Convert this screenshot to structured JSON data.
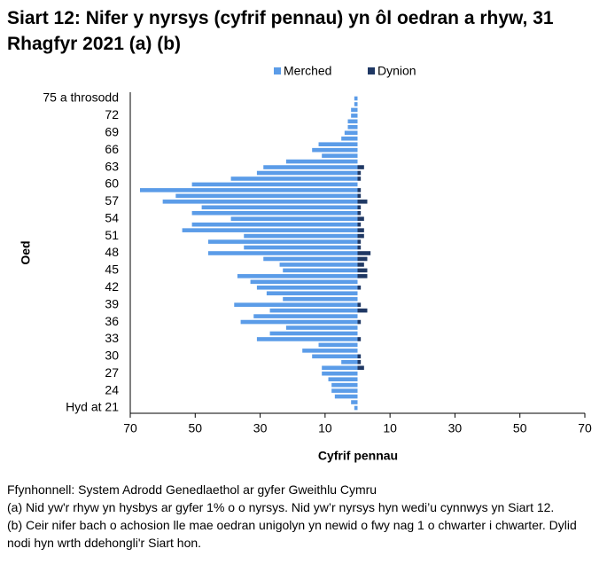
{
  "chart_data": {
    "type": "pyramid",
    "title": "Siart 12: Nifer y nyrsys (cyfrif pennau) yn ôl oedran a rhyw, 31 Rhagfyr 2021 (a) (b)",
    "x_label": "Cyfrif pennau",
    "y_label": "Oed",
    "categories": [
      "Hyd at 21",
      null,
      null,
      "24",
      null,
      null,
      "27",
      null,
      null,
      "30",
      null,
      null,
      "33",
      null,
      null,
      "36",
      null,
      null,
      "39",
      null,
      null,
      "42",
      null,
      null,
      "45",
      null,
      null,
      "48",
      null,
      null,
      "51",
      null,
      null,
      "54",
      null,
      null,
      "57",
      null,
      null,
      "60",
      null,
      null,
      "63",
      null,
      null,
      "66",
      null,
      null,
      "69",
      null,
      null,
      "72",
      null,
      null,
      "75 a throsodd"
    ],
    "series": [
      {
        "name": "Merched",
        "color": "#5b9ce8",
        "side": "left",
        "values": [
          1,
          2,
          7,
          8,
          8,
          9,
          11,
          11,
          5,
          14,
          17,
          12,
          31,
          27,
          22,
          36,
          32,
          27,
          38,
          23,
          28,
          31,
          33,
          37,
          23,
          24,
          29,
          46,
          35,
          46,
          35,
          54,
          51,
          39,
          51,
          48,
          60,
          56,
          67,
          51,
          39,
          31,
          29,
          22,
          11,
          14,
          12,
          5,
          4,
          3,
          3,
          2,
          2,
          1,
          1
        ]
      },
      {
        "name": "Dynion",
        "color": "#1f3864",
        "side": "right",
        "values": [
          0,
          0,
          0,
          0,
          0,
          0,
          0,
          2,
          1,
          1,
          0,
          0,
          1,
          0,
          0,
          1,
          0,
          3,
          1,
          0,
          0,
          1,
          0,
          3,
          3,
          2,
          3,
          4,
          1,
          1,
          2,
          2,
          1,
          2,
          1,
          1,
          3,
          1,
          1,
          0,
          1,
          1,
          2,
          0,
          0,
          0,
          0,
          0,
          0,
          0,
          0,
          0,
          0,
          0,
          0
        ]
      }
    ],
    "xlim": [
      -70,
      70
    ],
    "xticks": [
      {
        "value": -70,
        "label": "70"
      },
      {
        "value": -50,
        "label": "50"
      },
      {
        "value": -30,
        "label": "30"
      },
      {
        "value": -10,
        "label": "10"
      },
      10,
      30,
      50,
      70
    ],
    "legend": "top",
    "notes": [
      "Ffynhonnell: System Adrodd Genedlaethol ar gyfer Gweithlu Cymru",
      "(a) Nid yw'r rhyw yn hysbys ar gyfer 1% o o nyrsys. Nid yw’r nyrsys hyn wedi’u cynnwys yn Siart 12.",
      "(b) Ceir nifer bach o achosion lle mae oedran unigolyn yn newid o fwy nag 1 o chwarter i chwarter. Dylid nodi hyn wrth ddehongli'r Siart hon."
    ]
  }
}
